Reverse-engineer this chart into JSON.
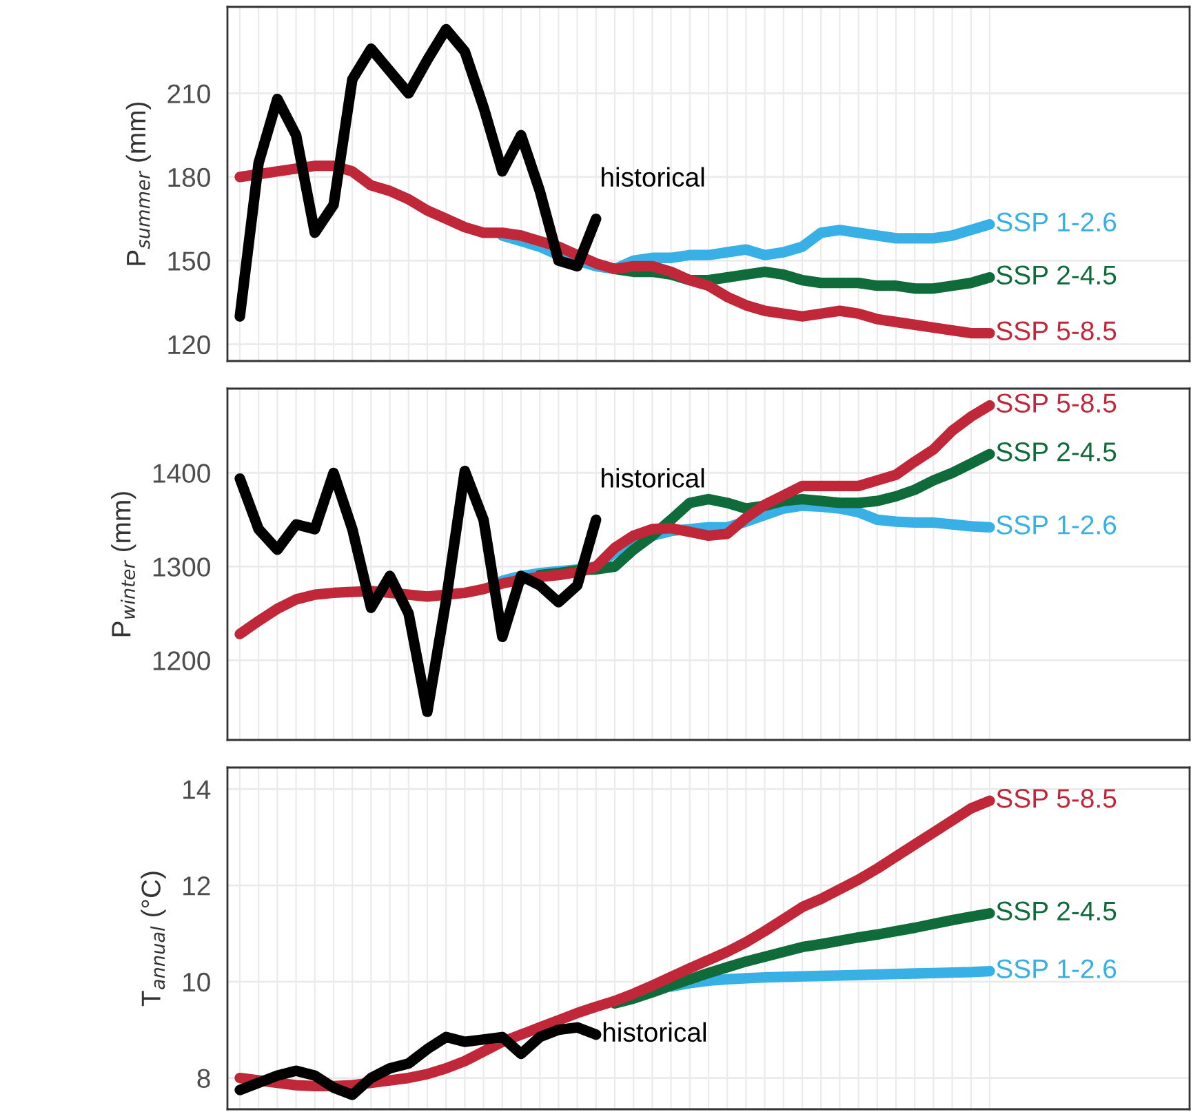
{
  "chart_data": [
    {
      "type": "line",
      "ylabel": "P$_{summer}$ (mm)",
      "ylim": [
        114,
        241
      ],
      "yticks": [
        120,
        150,
        180,
        210
      ],
      "grid": true,
      "tick_labels": "y",
      "categories": [
        null,
        null,
        null,
        null,
        null,
        null,
        null,
        null,
        null,
        null,
        null,
        null,
        null,
        null,
        null,
        null,
        null,
        null,
        null,
        null,
        null,
        null,
        null,
        null,
        null,
        null,
        null,
        null,
        null,
        null,
        null,
        null,
        null,
        null,
        null,
        null,
        null,
        null,
        null,
        null,
        null
      ],
      "series": [
        {
          "name": "SSP 1-2.6",
          "color": "#38b0e6",
          "values": [
            null,
            null,
            null,
            null,
            null,
            null,
            null,
            null,
            null,
            null,
            null,
            null,
            null,
            null,
            159,
            157,
            155,
            152,
            150,
            148,
            147,
            150,
            151,
            151,
            152,
            152,
            153,
            154,
            152,
            153,
            155,
            160,
            161,
            160,
            159,
            158,
            158,
            158,
            159,
            161,
            163
          ]
        },
        {
          "name": "SSP 2-4.5",
          "color": "#106b3a",
          "values": [
            null,
            null,
            null,
            null,
            null,
            null,
            null,
            null,
            null,
            null,
            null,
            null,
            null,
            null,
            null,
            null,
            null,
            null,
            null,
            null,
            147,
            146,
            146,
            145,
            143,
            143,
            144,
            145,
            146,
            145,
            143,
            142,
            142,
            142,
            141,
            141,
            140,
            140,
            141,
            142,
            144
          ]
        },
        {
          "name": "SSP 5-8.5",
          "color": "#c0283a",
          "values": [
            180,
            181,
            182,
            183,
            184,
            184,
            182,
            177,
            175,
            172,
            168,
            165,
            162,
            160,
            160,
            159,
            157,
            155,
            152,
            149,
            147,
            148,
            148,
            146,
            143,
            141,
            137,
            134,
            132,
            131,
            130,
            131,
            132,
            131,
            129,
            128,
            127,
            126,
            125,
            124,
            124
          ]
        },
        {
          "name": "historical",
          "color": "#000000",
          "values": [
            130,
            185,
            208,
            195,
            160,
            170,
            215,
            226,
            218,
            210,
            222,
            233,
            225,
            205,
            182,
            195,
            175,
            150,
            148,
            165,
            null,
            null,
            null,
            null,
            null,
            null,
            null,
            null,
            null,
            null,
            null,
            null,
            null,
            null,
            null,
            null,
            null,
            null,
            null,
            null,
            null
          ]
        }
      ]
    },
    {
      "type": "line",
      "ylabel": "P$_{winter}$ (mm)",
      "ylim": [
        1115,
        1490
      ],
      "yticks": [
        1200,
        1300,
        1400
      ],
      "grid": true,
      "tick_labels": "y",
      "categories": [
        null,
        null,
        null,
        null,
        null,
        null,
        null,
        null,
        null,
        null,
        null,
        null,
        null,
        null,
        null,
        null,
        null,
        null,
        null,
        null,
        null,
        null,
        null,
        null,
        null,
        null,
        null,
        null,
        null,
        null,
        null,
        null,
        null,
        null,
        null,
        null,
        null,
        null,
        null,
        null,
        null
      ],
      "series": [
        {
          "name": "SSP 1-2.6",
          "color": "#38b0e6",
          "values": [
            null,
            null,
            null,
            null,
            null,
            null,
            null,
            null,
            null,
            null,
            null,
            null,
            null,
            null,
            1285,
            1290,
            1293,
            1295,
            1297,
            1300,
            1315,
            1325,
            1333,
            1338,
            1340,
            1342,
            1342,
            1348,
            1355,
            1362,
            1365,
            1364,
            1362,
            1358,
            1350,
            1348,
            1347,
            1347,
            1345,
            1343,
            1342
          ]
        },
        {
          "name": "SSP 2-4.5",
          "color": "#106b3a",
          "values": [
            null,
            null,
            null,
            null,
            null,
            null,
            null,
            null,
            null,
            null,
            null,
            null,
            null,
            null,
            null,
            null,
            1291,
            1293,
            1296,
            1297,
            1300,
            1318,
            1333,
            1350,
            1368,
            1372,
            1368,
            1362,
            1365,
            1370,
            1372,
            1370,
            1368,
            1368,
            1370,
            1375,
            1382,
            1392,
            1400,
            1410,
            1420
          ]
        },
        {
          "name": "SSP 5-8.5",
          "color": "#c0283a",
          "values": [
            1228,
            1242,
            1255,
            1265,
            1270,
            1272,
            1273,
            1274,
            1272,
            1270,
            1268,
            1270,
            1272,
            1276,
            1282,
            1286,
            1289,
            1291,
            1294,
            1300,
            1320,
            1333,
            1340,
            1341,
            1337,
            1333,
            1335,
            1352,
            1366,
            1376,
            1386,
            1386,
            1386,
            1386,
            1392,
            1398,
            1412,
            1425,
            1445,
            1460,
            1472
          ]
        },
        {
          "name": "historical",
          "color": "#000000",
          "values": [
            1394,
            1340,
            1318,
            1345,
            1340,
            1400,
            1340,
            1256,
            1290,
            1250,
            1145,
            1264,
            1402,
            1350,
            1225,
            1290,
            1280,
            1262,
            1280,
            1350,
            null,
            null,
            null,
            null,
            null,
            null,
            null,
            null,
            null,
            null,
            null,
            null,
            null,
            null,
            null,
            null,
            null,
            null,
            null,
            null,
            null
          ]
        }
      ]
    },
    {
      "type": "line",
      "ylabel": "T$_{annual}$ (°C)",
      "ylim": [
        7.35,
        14.45
      ],
      "yticks": [
        8,
        10,
        12,
        14
      ],
      "grid": true,
      "tick_labels": "y",
      "categories": [
        null,
        null,
        null,
        null,
        null,
        null,
        null,
        null,
        null,
        null,
        null,
        null,
        null,
        null,
        null,
        null,
        null,
        null,
        null,
        null,
        null,
        null,
        null,
        null,
        null,
        null,
        null,
        null,
        null,
        null,
        null,
        null,
        null,
        null,
        null,
        null,
        null,
        null,
        null,
        null,
        null
      ],
      "series": [
        {
          "name": "SSP 1-2.6",
          "color": "#38b0e6",
          "values": [
            null,
            null,
            null,
            null,
            null,
            null,
            null,
            null,
            null,
            null,
            null,
            null,
            null,
            null,
            null,
            null,
            null,
            null,
            null,
            null,
            null,
            null,
            null,
            9.9,
            9.97,
            10.02,
            10.05,
            10.07,
            10.09,
            10.1,
            10.11,
            10.12,
            10.13,
            10.14,
            10.15,
            10.16,
            10.17,
            10.18,
            10.19,
            10.2,
            10.22
          ]
        },
        {
          "name": "SSP 2-4.5",
          "color": "#106b3a",
          "values": [
            null,
            null,
            null,
            null,
            null,
            null,
            null,
            null,
            null,
            null,
            null,
            null,
            null,
            null,
            null,
            null,
            null,
            null,
            null,
            null,
            9.55,
            9.65,
            9.78,
            9.92,
            10.05,
            10.18,
            10.3,
            10.42,
            10.52,
            10.62,
            10.72,
            10.78,
            10.85,
            10.92,
            10.98,
            11.05,
            11.12,
            11.2,
            11.28,
            11.35,
            11.42
          ]
        },
        {
          "name": "SSP 5-8.5",
          "color": "#c0283a",
          "values": [
            8.0,
            7.95,
            7.9,
            7.85,
            7.83,
            7.83,
            7.85,
            7.9,
            7.95,
            8.0,
            8.08,
            8.2,
            8.35,
            8.55,
            8.75,
            8.9,
            9.05,
            9.2,
            9.35,
            9.48,
            9.6,
            9.75,
            9.92,
            10.1,
            10.28,
            10.45,
            10.62,
            10.82,
            11.05,
            11.3,
            11.55,
            11.72,
            11.92,
            12.12,
            12.35,
            12.6,
            12.85,
            13.1,
            13.35,
            13.6,
            13.76
          ]
        },
        {
          "name": "historical",
          "color": "#000000",
          "values": [
            7.75,
            7.9,
            8.05,
            8.15,
            8.05,
            7.8,
            7.65,
            8.0,
            8.2,
            8.3,
            8.6,
            8.85,
            8.75,
            8.8,
            8.85,
            8.5,
            8.85,
            9.0,
            9.05,
            8.9,
            null,
            null,
            null,
            null,
            null,
            null,
            null,
            null,
            null,
            null,
            null,
            null,
            null,
            null,
            null,
            null,
            null,
            null,
            null,
            null,
            null
          ]
        }
      ]
    }
  ]
}
